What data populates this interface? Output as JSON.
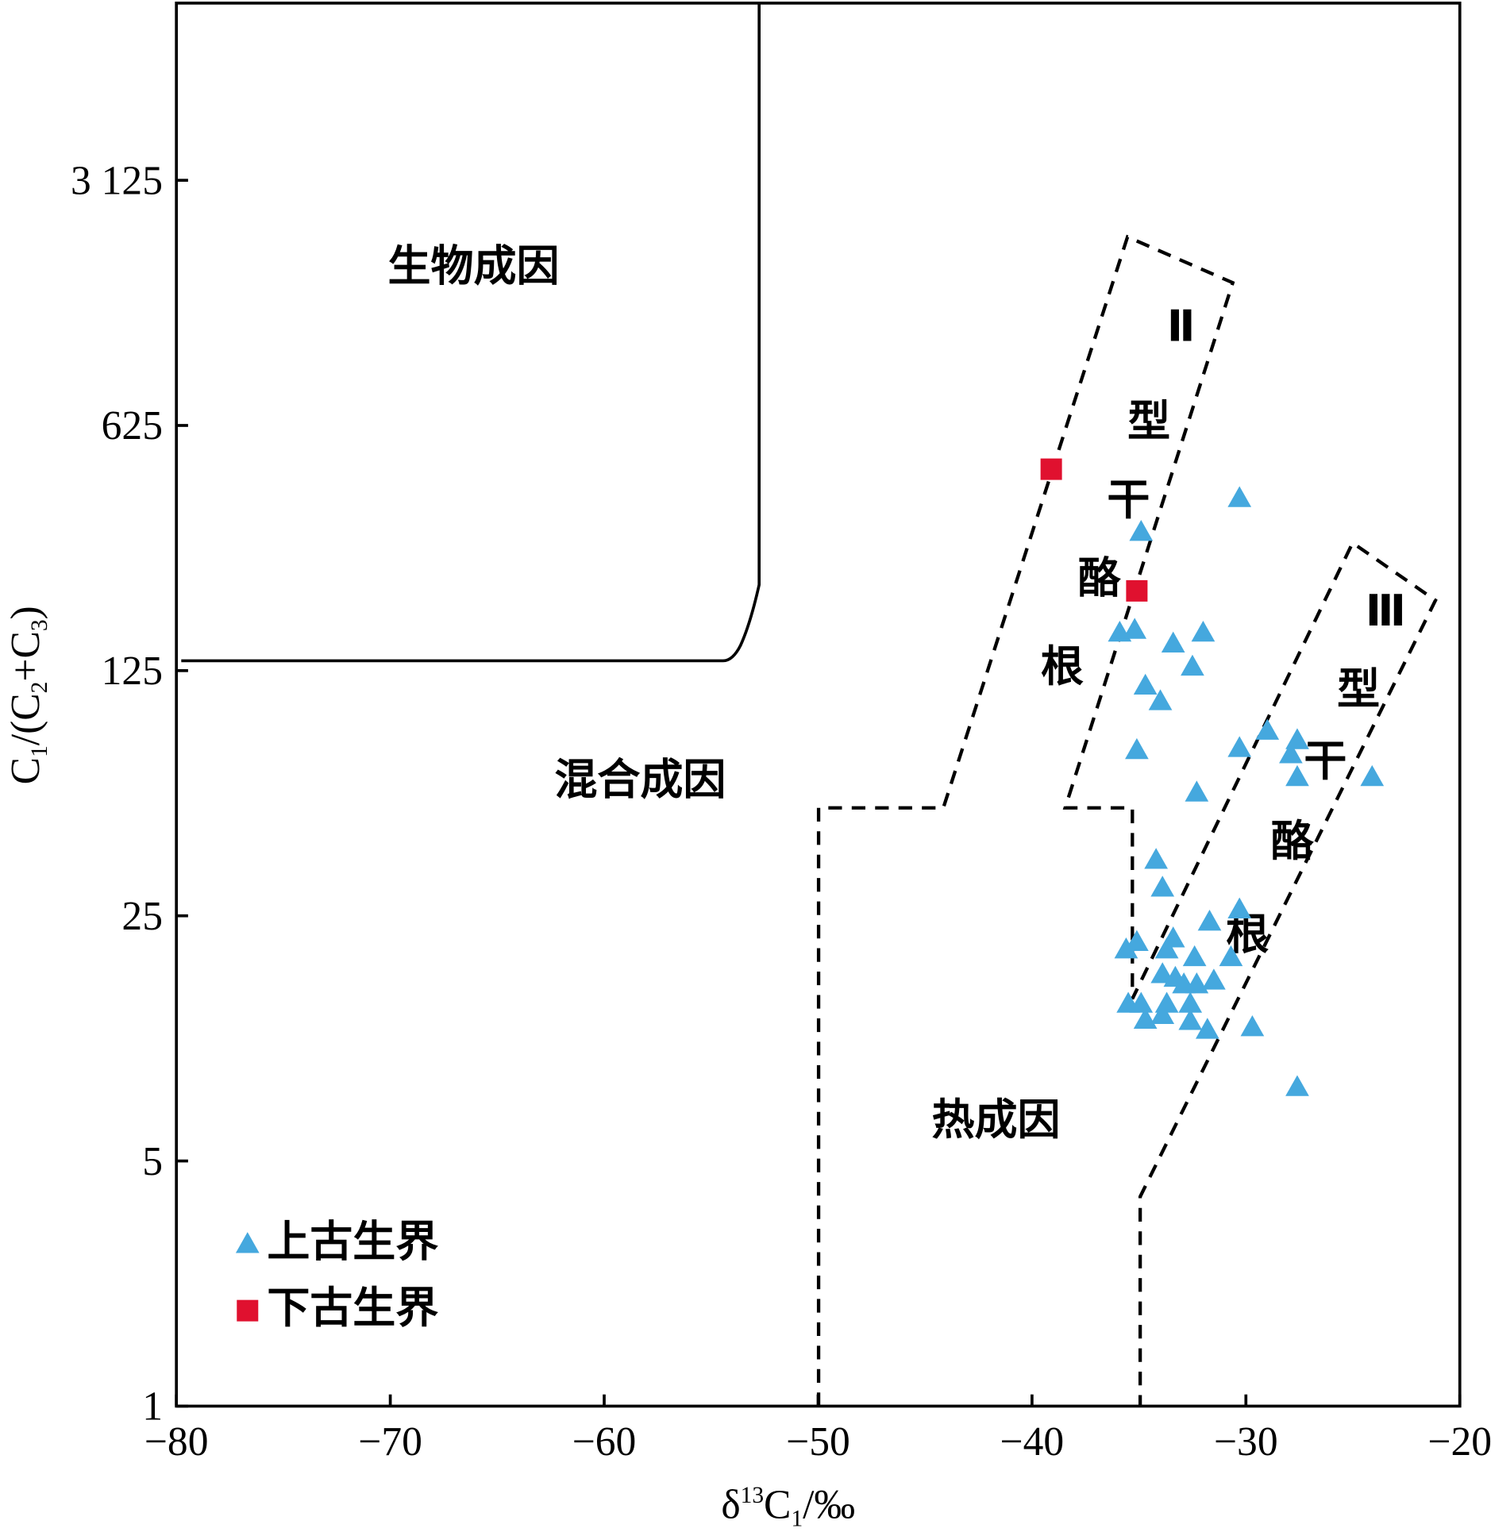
{
  "chart_data": {
    "type": "scatter",
    "x_label": [
      "δ",
      "13",
      "C",
      "1",
      "/‰"
    ],
    "y_label": [
      "C",
      "1",
      "/(C",
      "2",
      "+C",
      "3",
      ")"
    ],
    "xlim": [
      -80,
      -20
    ],
    "xticks": [
      {
        "value": -80,
        "label": "−80"
      },
      {
        "value": -70,
        "label": "−70"
      },
      {
        "value": -60,
        "label": "−60"
      },
      {
        "value": -50,
        "label": "−50"
      },
      {
        "value": -40,
        "label": "−40"
      },
      {
        "value": -30,
        "label": "−30"
      },
      {
        "value": -20,
        "label": "−20"
      }
    ],
    "ylim": [
      1,
      10000
    ],
    "log_y": true,
    "yticks": [
      1,
      5,
      25,
      125,
      625,
      {
        "value": 3125,
        "label": "3 125"
      }
    ],
    "regions": {
      "biogenic": "生物成因",
      "mixed": "混合成因",
      "thermal": "热成因",
      "type2": [
        "Ⅱ",
        "型",
        "干",
        "酪",
        "根"
      ],
      "type3": [
        "Ⅲ",
        "型",
        "干",
        "酪",
        "根"
      ]
    },
    "legend_position": "lower left",
    "series": [
      {
        "name": "上古生界",
        "color": "#45a8de",
        "marker": "triangle",
        "x": [
          -30.3,
          -34.9,
          -35.9,
          -35.2,
          -32.0,
          -33.4,
          -32.5,
          -34.7,
          -34.0,
          -29.0,
          -30.3,
          -35.1,
          -27.6,
          -27.9,
          -27.6,
          -24.1,
          -32.3,
          -34.2,
          -33.9,
          -30.3,
          -31.7,
          -35.1,
          -35.6,
          -33.4,
          -33.7,
          -32.4,
          -30.7,
          -33.9,
          -33.3,
          -32.9,
          -32.3,
          -31.5,
          -35.5,
          -34.9,
          -33.7,
          -32.6,
          -34.7,
          -33.9,
          -32.6,
          -31.8,
          -29.7,
          -27.6
        ],
        "values": [
          387,
          310,
          160,
          163,
          160,
          149,
          128,
          113,
          102,
          84,
          75,
          74,
          79,
          72,
          62,
          62,
          56,
          36,
          30,
          26,
          24,
          21,
          20,
          21.5,
          20,
          19,
          19,
          17,
          16.6,
          15.9,
          15.9,
          16.3,
          14,
          14,
          14,
          14,
          12.6,
          13,
          12.5,
          11.8,
          12,
          8.1
        ]
      },
      {
        "name": "下古生界",
        "color": "#e0112f",
        "marker": "square",
        "x": [
          -39.1,
          -35.1
        ],
        "values": [
          469,
          211
        ]
      }
    ]
  }
}
